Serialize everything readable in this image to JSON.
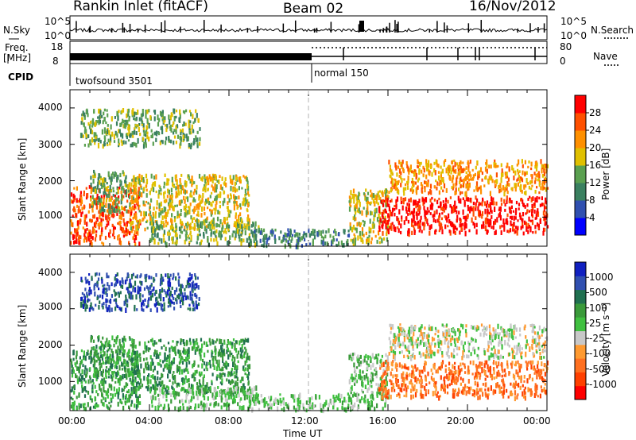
{
  "header": {
    "station": "Rankin Inlet (fitACF)",
    "beam": "Beam 02",
    "date": "16/Nov/2012"
  },
  "strip_labels": {
    "nsky": "N.Sky",
    "nsky_ticks": [
      "10^5",
      "10^0"
    ],
    "nsearch": "N.Search",
    "nsearch_ticks": [
      "10^5",
      "10^0"
    ],
    "freq": "Freq.",
    "freq_unit": "[MHz]",
    "freq_ticks": [
      "18",
      "8"
    ],
    "nave": "Nave",
    "nave_ticks": [
      "80",
      "0"
    ],
    "cpid": "CPID",
    "mode1": "twofsound 3501",
    "mode2": "normal 150"
  },
  "colors": {
    "power": [
      "#0000ff",
      "#3050b0",
      "#3a8060",
      "#5aa050",
      "#e0c000",
      "#ff9000",
      "#ff5000",
      "#ff0000"
    ],
    "velocity": [
      "#ff0000",
      "#ff4000",
      "#ff7020",
      "#ff9a30",
      "#c8c8c8",
      "#40c040",
      "#3a9a3a",
      "#207050",
      "#3050b0",
      "#1020c0"
    ],
    "gray": "#c0c0c0"
  },
  "chart_data": [
    {
      "type": "heatmap",
      "name": "power",
      "ylabel": "Slant Range [km]",
      "y_ticks": [
        1000,
        2000,
        3000,
        4000
      ],
      "ylim": [
        200,
        4500
      ],
      "xlim": [
        0,
        24
      ],
      "colorbar_label": "Power [dB]",
      "colorbar_ticks": [
        "28",
        "24",
        "20",
        "16",
        "12",
        "8",
        "4"
      ],
      "scatter_regions": [
        {
          "x0": 0.0,
          "x1": 3.5,
          "y0": 300,
          "y1": 1900,
          "level": 6
        },
        {
          "x0": 1.0,
          "x1": 3.0,
          "y0": 1200,
          "y1": 2300,
          "level": 3
        },
        {
          "x0": 3.0,
          "x1": 9.0,
          "y0": 700,
          "y1": 2200,
          "level": 4
        },
        {
          "x0": 4.0,
          "x1": 9.5,
          "y0": 300,
          "y1": 900,
          "level": 3
        },
        {
          "x0": 0.5,
          "x1": 6.5,
          "y0": 3000,
          "y1": 4000,
          "level": 3
        },
        {
          "x0": 9.0,
          "x1": 14.0,
          "y0": 250,
          "y1": 700,
          "level": 2
        },
        {
          "x0": 14.0,
          "x1": 16.0,
          "y0": 300,
          "y1": 1800,
          "level": 4
        },
        {
          "x0": 15.5,
          "x1": 24.0,
          "y0": 600,
          "y1": 1600,
          "level": 7
        },
        {
          "x0": 16.0,
          "x1": 24.0,
          "y0": 1700,
          "y1": 2600,
          "level": 5
        }
      ]
    },
    {
      "type": "heatmap",
      "name": "velocity",
      "ylabel": "Slant Range [km]",
      "y_ticks": [
        1000,
        2000,
        3000,
        4000
      ],
      "ylim": [
        200,
        4500
      ],
      "xlim": [
        0,
        24
      ],
      "xlabel": "Time UT",
      "x_ticks": [
        "00:00",
        "04:00",
        "08:00",
        "12:00",
        "16:00",
        "20:00",
        "00:00"
      ],
      "colorbar_label": "Velocity [m s⁻¹]",
      "colorbar_ticks": [
        "1000",
        "500",
        "100",
        "25",
        "-25",
        "-100",
        "-500",
        "-1000"
      ],
      "scatter_regions": [
        {
          "x0": 0.0,
          "x1": 3.5,
          "y0": 300,
          "y1": 1900,
          "level": 6
        },
        {
          "x0": 1.0,
          "x1": 3.0,
          "y0": 1200,
          "y1": 2300,
          "level": 6
        },
        {
          "x0": 3.0,
          "x1": 9.0,
          "y0": 700,
          "y1": 2200,
          "level": 6
        },
        {
          "x0": 4.0,
          "x1": 9.5,
          "y0": 300,
          "y1": 900,
          "level": 5
        },
        {
          "x0": 0.5,
          "x1": 6.5,
          "y0": 3000,
          "y1": 4000,
          "level": 8
        },
        {
          "x0": 9.0,
          "x1": 14.0,
          "y0": 250,
          "y1": 700,
          "level": 5
        },
        {
          "x0": 14.0,
          "x1": 16.0,
          "y0": 300,
          "y1": 1800,
          "level": 5
        },
        {
          "x0": 15.5,
          "x1": 24.0,
          "y0": 600,
          "y1": 1600,
          "level": 2
        },
        {
          "x0": 16.0,
          "x1": 24.0,
          "y0": 1700,
          "y1": 2600,
          "level": 4
        }
      ]
    }
  ]
}
